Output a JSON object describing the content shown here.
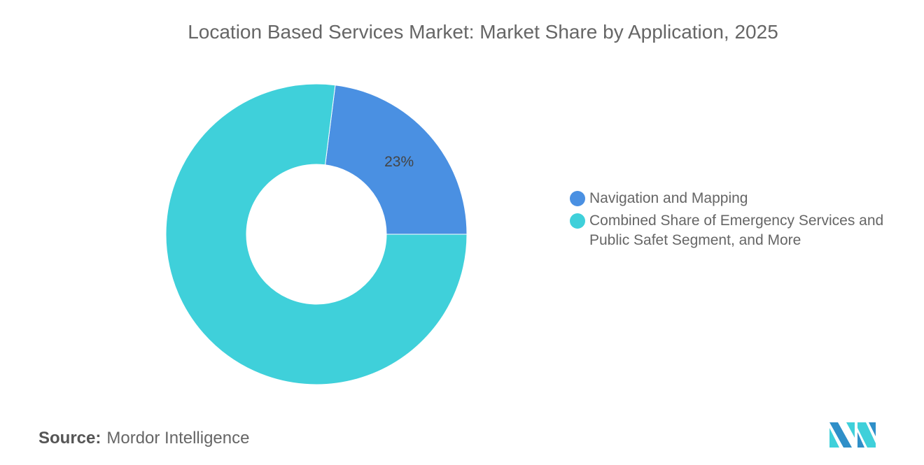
{
  "title": "Location Based Services Market: Market Share by Application, 2025",
  "chart_data": {
    "type": "pie",
    "variant": "donut",
    "categories": [
      "Navigation and Mapping",
      "Combined Share of Emergency Services and Public Safet Segment, and More"
    ],
    "values": [
      23,
      77
    ],
    "data_labels": [
      "23%",
      ""
    ],
    "colors": [
      "#4a90e2",
      "#3fd0da"
    ],
    "legend_position": "right"
  },
  "source": {
    "label": "Source:",
    "value": "Mordor Intelligence"
  },
  "logo_colors": [
    "#2f8fc8",
    "#3fd0da"
  ]
}
